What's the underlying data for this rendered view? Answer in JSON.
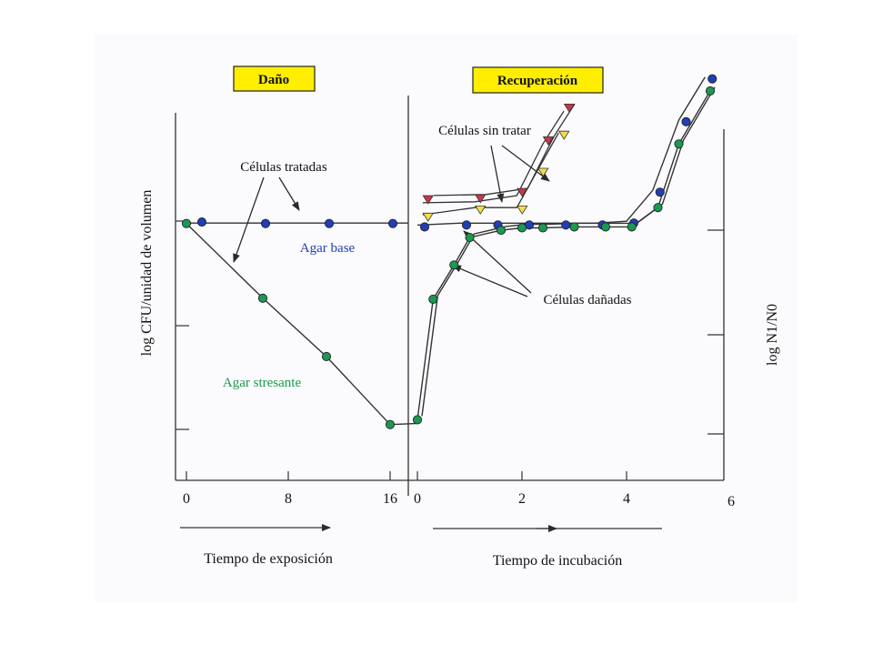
{
  "chart_data": {
    "type": "line",
    "phases": [
      {
        "label": "Daño"
      },
      {
        "label": "Recuperación"
      }
    ],
    "left_ylabel": "log CFU/unidad de volumen",
    "right_ylabel": "log N1/N0",
    "axis_labels": {
      "exposure": "Tiempo de exposición",
      "incubation": "Tiempo de incubación"
    },
    "exposure_ticks": [
      "0",
      "8",
      "16"
    ],
    "incubation_ticks": [
      "0",
      "2",
      "4",
      "6"
    ],
    "annotations": {
      "treated": "Células tratadas",
      "untreated": "Células sin tratar",
      "damaged": "Células dañadas",
      "agar_base": "Agar base",
      "agar_stress": "Agar stresante"
    },
    "exposure_series": [
      {
        "name": "Agar base",
        "x": [
          1,
          6,
          11,
          16
        ],
        "y": [
          4.3,
          4.27,
          4.27,
          4.27
        ]
      },
      {
        "name": "Agar stresante",
        "x": [
          0,
          6,
          11,
          16
        ],
        "y": [
          4.27,
          2.72,
          1.51,
          0.1
        ]
      }
    ],
    "incubation_series": [
      {
        "name": "Agar base",
        "x": [
          0,
          0.8,
          1.4,
          2,
          2.7,
          3.4,
          4,
          4.5,
          5,
          5.5
        ],
        "y": [
          4.2,
          4.24,
          4.24,
          4.24,
          4.24,
          4.24,
          4.28,
          4.92,
          6.38,
          7.27
        ]
      },
      {
        "name": "Agar stresante",
        "x": [
          0,
          0.3,
          0.7,
          1,
          1.6,
          2,
          2.4,
          3.0,
          3.6,
          4.1,
          4.6,
          5.0,
          5.6
        ],
        "y": [
          0.2,
          2.7,
          3.41,
          3.98,
          4.13,
          4.18,
          4.18,
          4.2,
          4.2,
          4.2,
          4.6,
          5.92,
          7.02
        ]
      },
      {
        "name": "Células sin tratar",
        "x": [
          0.1,
          1.1,
          1.9,
          2.4,
          2.8
        ],
        "y": [
          4.7,
          4.72,
          4.85,
          5.92,
          6.6
        ]
      },
      {
        "name": "Células sin tratar (agar stresante)",
        "x": [
          0.1,
          1.1,
          1.9,
          2.3,
          2.7
        ],
        "y": [
          4.45,
          4.6,
          4.6,
          5.38,
          6.15
        ]
      }
    ],
    "colors": {
      "agar_base": "#1f3fb6",
      "agar_stress": "#1a9a4c",
      "untreated_base": "#c8364a",
      "untreated_stress": "#f2e04a",
      "phase_box": "#ffee00",
      "line": "#333333"
    }
  }
}
